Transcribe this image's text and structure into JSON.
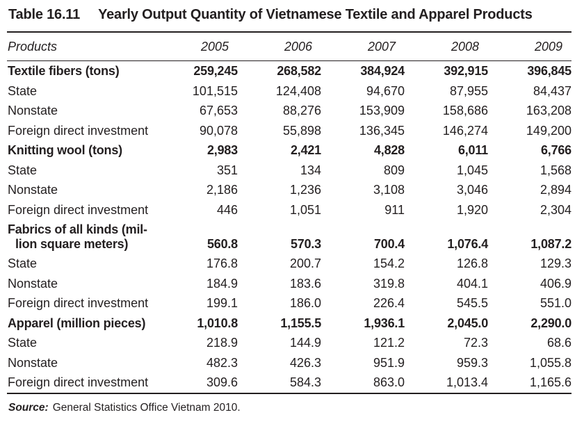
{
  "table": {
    "title_label": "Table 16.11",
    "title": "Yearly Output Quantity of Vietnamese Textile and Apparel Products",
    "columns": [
      "Products",
      "2005",
      "2006",
      "2007",
      "2008",
      "2009"
    ],
    "rows": [
      {
        "label": "Textile fibers (tons)",
        "bold": true,
        "values": [
          "259,245",
          "268,582",
          "384,924",
          "392,915",
          "396,845"
        ]
      },
      {
        "label": "State",
        "bold": false,
        "values": [
          "101,515",
          "124,408",
          "94,670",
          "87,955",
          "84,437"
        ]
      },
      {
        "label": "Nonstate",
        "bold": false,
        "values": [
          "67,653",
          "88,276",
          "153,909",
          "158,686",
          "163,208"
        ]
      },
      {
        "label": "Foreign direct investment",
        "bold": false,
        "values": [
          "90,078",
          "55,898",
          "136,345",
          "146,274",
          "149,200"
        ]
      },
      {
        "label": "Knitting wool (tons)",
        "bold": true,
        "values": [
          "2,983",
          "2,421",
          "4,828",
          "6,011",
          "6,766"
        ]
      },
      {
        "label": "State",
        "bold": false,
        "values": [
          "351",
          "134",
          "809",
          "1,045",
          "1,568"
        ]
      },
      {
        "label": "Nonstate",
        "bold": false,
        "values": [
          "2,186",
          "1,236",
          "3,108",
          "3,046",
          "2,894"
        ]
      },
      {
        "label": "Foreign direct investment",
        "bold": false,
        "values": [
          "446",
          "1,051",
          "911",
          "1,920",
          "2,304"
        ]
      },
      {
        "label_line1": "Fabrics of all kinds (mil-",
        "label_line2": "lion square meters)",
        "bold": true,
        "values": [
          "560.8",
          "570.3",
          "700.4",
          "1,076.4",
          "1,087.2"
        ]
      },
      {
        "label": "State",
        "bold": false,
        "values": [
          "176.8",
          "200.7",
          "154.2",
          "126.8",
          "129.3"
        ]
      },
      {
        "label": "Nonstate",
        "bold": false,
        "values": [
          "184.9",
          "183.6",
          "319.8",
          "404.1",
          "406.9"
        ]
      },
      {
        "label": "Foreign direct investment",
        "bold": false,
        "values": [
          "199.1",
          "186.0",
          "226.4",
          "545.5",
          "551.0"
        ]
      },
      {
        "label": "Apparel (million pieces)",
        "bold": true,
        "values": [
          "1,010.8",
          "1,155.5",
          "1,936.1",
          "2,045.0",
          "2,290.0"
        ]
      },
      {
        "label": "State",
        "bold": false,
        "values": [
          "218.9",
          "144.9",
          "121.2",
          "72.3",
          "68.6"
        ]
      },
      {
        "label": "Nonstate",
        "bold": false,
        "values": [
          "482.3",
          "426.3",
          "951.9",
          "959.3",
          "1,055.8"
        ]
      },
      {
        "label": "Foreign direct investment",
        "bold": false,
        "values": [
          "309.6",
          "584.3",
          "863.0",
          "1,013.4",
          "1,165.6"
        ]
      }
    ],
    "source_label": "Source:",
    "source_text": "General Statistics Office Vietnam 2010."
  },
  "colors": {
    "text": "#231f20",
    "rule": "#231f20",
    "background": "#ffffff"
  }
}
